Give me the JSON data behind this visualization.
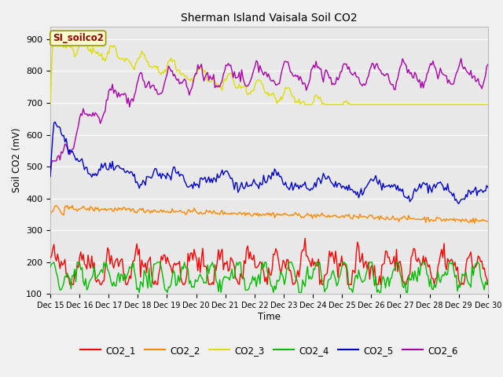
{
  "title": "Sherman Island Vaisala Soil CO2",
  "ylabel": "Soil CO2 (mV)",
  "xlabel": "Time",
  "annotation": "SI_soilco2",
  "x_tick_labels": [
    "Dec 15",
    "Dec 16",
    "Dec 17",
    "Dec 18",
    "Dec 19",
    "Dec 20",
    "Dec 21",
    "Dec 22",
    "Dec 23",
    "Dec 24",
    "Dec 25",
    "Dec 26",
    "Dec 27",
    "Dec 28",
    "Dec 29",
    "Dec 30"
  ],
  "ylim": [
    100,
    940
  ],
  "yticks": [
    100,
    200,
    300,
    400,
    500,
    600,
    700,
    800,
    900
  ],
  "fig_bg": "#f0f0f0",
  "ax_bg": "#e8e8e8",
  "colors": {
    "CO2_1": "#ff0000",
    "CO2_2": "#ff8800",
    "CO2_3": "#dddd00",
    "CO2_4": "#00bb00",
    "CO2_5": "#0000cc",
    "CO2_6": "#aa00aa"
  },
  "linewidth": 1.0,
  "figsize": [
    6.4,
    4.8
  ],
  "dpi": 100
}
